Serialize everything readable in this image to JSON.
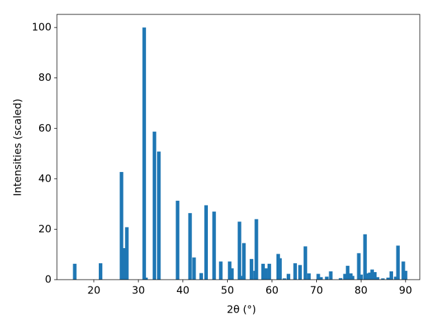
{
  "chart_data": {
    "type": "bar",
    "xlabel": "2θ (°)",
    "ylabel": "Intensities (scaled)",
    "x": [
      15.7,
      21.5,
      26.2,
      26.8,
      27.4,
      31.3,
      31.7,
      33.6,
      34.6,
      38.8,
      41.6,
      42.5,
      44.1,
      45.2,
      47.0,
      48.5,
      50.5,
      51.0,
      52.7,
      53.2,
      53.7,
      55.4,
      56.2,
      56.5,
      58.0,
      58.6,
      59.4,
      61.4,
      61.8,
      62.8,
      63.7,
      65.2,
      66.3,
      67.5,
      68.3,
      70.4,
      71.0,
      72.3,
      73.2,
      75.4,
      76.4,
      77.0,
      77.7,
      78.1,
      79.5,
      80.0,
      80.9,
      81.4,
      82.0,
      82.5,
      83.1,
      83.7,
      84.9,
      86.1,
      86.8,
      87.8,
      88.3,
      89.5,
      90.0
    ],
    "values": [
      6.3,
      6.5,
      42.7,
      12.5,
      20.8,
      100,
      0.8,
      58.7,
      50.8,
      31.3,
      26.4,
      8.8,
      2.6,
      29.5,
      27.0,
      7.2,
      7.2,
      4.5,
      23.0,
      1.5,
      14.5,
      8.2,
      3.5,
      24.0,
      6.3,
      4.5,
      6.3,
      10.2,
      8.5,
      0.5,
      2.3,
      6.5,
      5.8,
      13.2,
      2.5,
      2.3,
      1.0,
      1.2,
      3.3,
      0.6,
      2.3,
      5.5,
      2.5,
      1.5,
      10.5,
      2.0,
      18.0,
      2.5,
      2.8,
      4.0,
      3.0,
      1.0,
      0.5,
      0.8,
      3.3,
      1.2,
      13.5,
      7.2,
      3.5
    ],
    "color": "#1f77b4",
    "xlim": [
      11.7,
      93.2
    ],
    "xticks": [
      20,
      30,
      40,
      50,
      60,
      70,
      80,
      90
    ],
    "ylim": [
      0,
      105.2
    ],
    "yticks": [
      0,
      20,
      40,
      60,
      80,
      100
    ],
    "grid": false
  }
}
